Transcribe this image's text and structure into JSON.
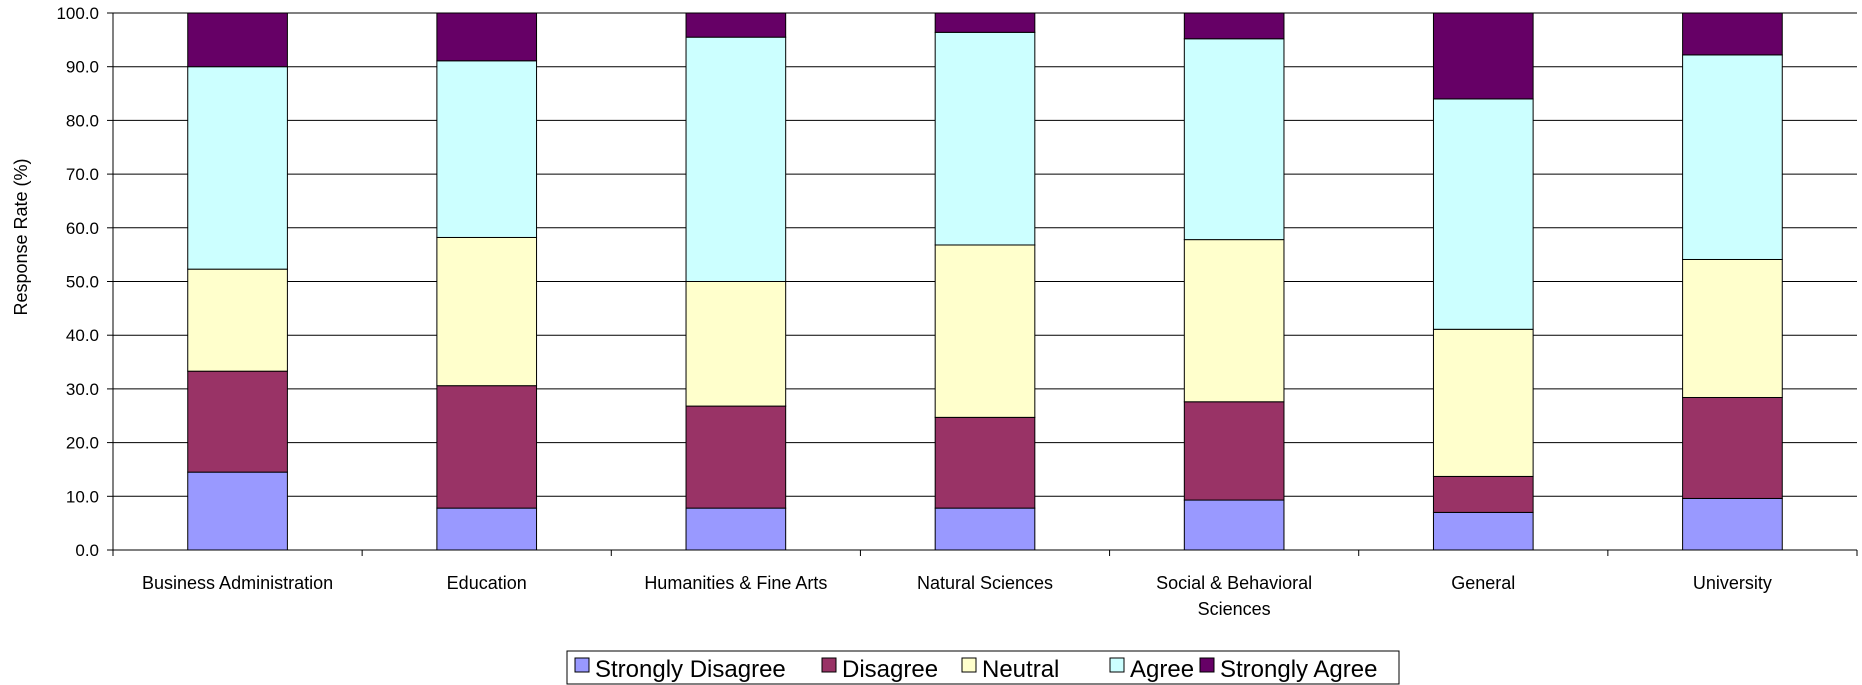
{
  "chart_data": {
    "type": "bar",
    "stacked": true,
    "title": "",
    "xlabel": "",
    "ylabel": "Response Rate (%)",
    "ylim": [
      0,
      100
    ],
    "yticks": [
      "0.0",
      "10.0",
      "20.0",
      "30.0",
      "40.0",
      "50.0",
      "60.0",
      "70.0",
      "80.0",
      "90.0",
      "100.0"
    ],
    "grid": "horizontal",
    "legend_position": "bottom",
    "categories": [
      [
        "Business Administration"
      ],
      [
        "Education"
      ],
      [
        "Humanities & Fine Arts"
      ],
      [
        "Natural Sciences"
      ],
      [
        "Social & Behavioral",
        "Sciences"
      ],
      [
        "General"
      ],
      [
        "University"
      ]
    ],
    "series": [
      {
        "name": "Strongly Disagree",
        "color": "#9999ff",
        "values": [
          14.5,
          7.8,
          7.8,
          7.8,
          9.3,
          7.0,
          9.6
        ]
      },
      {
        "name": "Disagree",
        "color": "#993366",
        "values": [
          18.8,
          22.8,
          19.0,
          16.9,
          18.3,
          6.7,
          18.8
        ]
      },
      {
        "name": "Neutral",
        "color": "#ffffcc",
        "values": [
          19.0,
          27.6,
          23.2,
          32.1,
          30.2,
          27.4,
          25.7
        ]
      },
      {
        "name": "Agree",
        "color": "#ccffff",
        "values": [
          37.7,
          32.9,
          45.5,
          39.6,
          37.4,
          42.9,
          38.1
        ]
      },
      {
        "name": "Strongly Agree",
        "color": "#660066",
        "values": [
          10.0,
          8.9,
          4.5,
          3.6,
          4.8,
          16.0,
          7.8
        ]
      }
    ]
  }
}
